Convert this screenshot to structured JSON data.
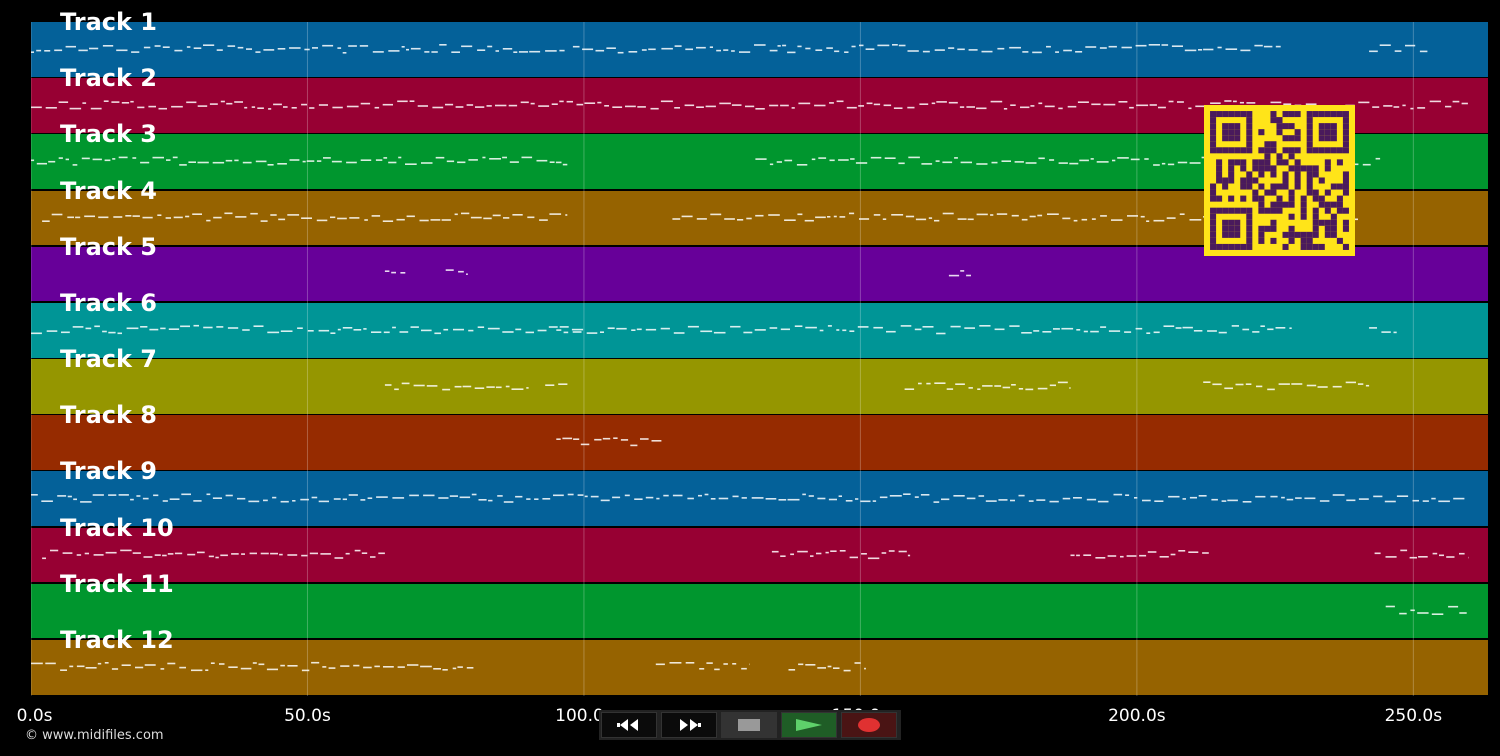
{
  "app": {
    "copyright": "© www.midifiles.com"
  },
  "timeline": {
    "tick_labels": [
      "0.0s",
      "50.0s",
      "100.0s",
      "150.0s",
      "200.0s",
      "250.0s"
    ],
    "tick_values": [
      0,
      50,
      100,
      150,
      200,
      250
    ],
    "max_seconds": 263.5
  },
  "tracks": [
    {
      "label": "Track 1",
      "color": "#046199"
    },
    {
      "label": "Track 2",
      "color": "#970033"
    },
    {
      "label": "Track 3",
      "color": "#00962e"
    },
    {
      "label": "Track 4",
      "color": "#966300"
    },
    {
      "label": "Track 5",
      "color": "#670099"
    },
    {
      "label": "Track 6",
      "color": "#009596"
    },
    {
      "label": "Track 7",
      "color": "#959600"
    },
    {
      "label": "Track 8",
      "color": "#962b00"
    },
    {
      "label": "Track 9",
      "color": "#046199"
    },
    {
      "label": "Track 10",
      "color": "#970033"
    },
    {
      "label": "Track 11",
      "color": "#00962e"
    },
    {
      "label": "Track 12",
      "color": "#966300"
    }
  ],
  "note_segments": [
    [
      [
        0,
        97
      ],
      [
        98,
        113
      ],
      [
        114,
        135
      ],
      [
        135,
        226
      ],
      [
        242,
        253
      ]
    ],
    [
      [
        0,
        260
      ]
    ],
    [
      [
        0,
        97
      ],
      [
        131,
        244
      ]
    ],
    [
      [
        2,
        97
      ],
      [
        116,
        240
      ]
    ],
    [
      [
        64,
        68
      ],
      [
        75,
        79
      ],
      [
        166,
        170
      ]
    ],
    [
      [
        0,
        100
      ],
      [
        95,
        228
      ],
      [
        242,
        247
      ]
    ],
    [
      [
        64,
        90
      ],
      [
        93,
        97
      ],
      [
        158,
        188
      ],
      [
        212,
        242
      ]
    ],
    [
      [
        95,
        114
      ]
    ],
    [
      [
        0,
        260
      ]
    ],
    [
      [
        2,
        64
      ],
      [
        134,
        159
      ],
      [
        188,
        213
      ],
      [
        243,
        260
      ]
    ],
    [
      [
        245,
        260
      ]
    ],
    [
      [
        0,
        80
      ],
      [
        113,
        130
      ],
      [
        137,
        151
      ]
    ]
  ],
  "transport": {
    "buttons": [
      {
        "name": "rewind",
        "icon": "rewind-icon"
      },
      {
        "name": "fast-forward",
        "icon": "fast-forward-icon"
      },
      {
        "name": "stop",
        "icon": "stop-icon"
      },
      {
        "name": "play",
        "icon": "play-icon",
        "color": "#5ed16a"
      },
      {
        "name": "record",
        "icon": "record-icon",
        "color": "#e03131"
      }
    ]
  },
  "qr": {
    "color": "#4a1a5c",
    "background": "#ffe419"
  }
}
